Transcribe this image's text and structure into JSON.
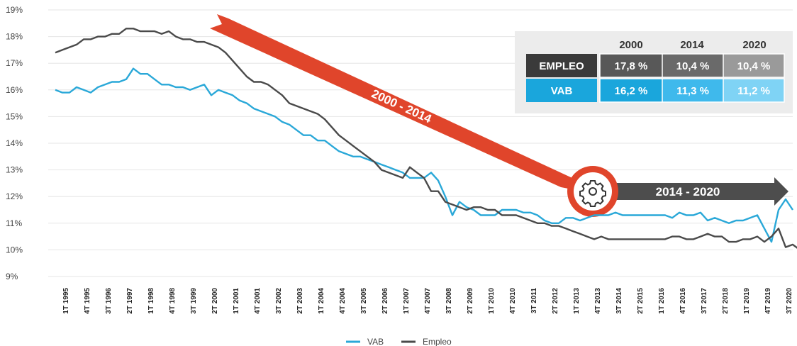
{
  "chart_data": {
    "type": "line",
    "ylim": [
      9,
      19
    ],
    "y_ticks": [
      "9%",
      "10%",
      "11%",
      "12%",
      "13%",
      "14%",
      "15%",
      "16%",
      "17%",
      "18%",
      "19%"
    ],
    "x_labels": [
      "1T 1995",
      "4T 1995",
      "3T 1996",
      "2T 1997",
      "1T 1998",
      "4T 1998",
      "3T 1999",
      "2T 2000",
      "1T 2001",
      "4T 2001",
      "3T 2002",
      "2T 2003",
      "1T 2004",
      "4T 2004",
      "3T 2005",
      "2T 2006",
      "1T 2007",
      "4T 2007",
      "3T 2008",
      "2T 2009",
      "1T 2010",
      "4T 2010",
      "3T 2011",
      "2T 2012",
      "1T 2013",
      "4T 2013",
      "3T 2014",
      "2T 2015",
      "1T 2016",
      "4T 2016",
      "3T 2017",
      "2T 2018",
      "1T 2019",
      "4T 2019",
      "3T 2020"
    ],
    "grid": true,
    "legend": "bottom-center",
    "series": [
      {
        "name": "VAB",
        "color": "#2aa8d8",
        "values": [
          16.0,
          15.9,
          15.9,
          16.1,
          16.0,
          15.9,
          16.1,
          16.2,
          16.3,
          16.3,
          16.4,
          16.8,
          16.6,
          16.6,
          16.4,
          16.2,
          16.2,
          16.1,
          16.1,
          16.0,
          16.1,
          16.2,
          15.8,
          16.0,
          15.9,
          15.8,
          15.6,
          15.5,
          15.3,
          15.2,
          15.1,
          15.0,
          14.8,
          14.7,
          14.5,
          14.3,
          14.3,
          14.1,
          14.1,
          13.9,
          13.7,
          13.6,
          13.5,
          13.5,
          13.4,
          13.3,
          13.2,
          13.1,
          13.0,
          12.9,
          12.7,
          12.7,
          12.7,
          12.9,
          12.6,
          12.0,
          11.3,
          11.8,
          11.6,
          11.5,
          11.3,
          11.3,
          11.3,
          11.5,
          11.5,
          11.5,
          11.4,
          11.4,
          11.3,
          11.1,
          11.0,
          11.0,
          11.2,
          11.2,
          11.1,
          11.2,
          11.3,
          11.3,
          11.3,
          11.4,
          11.3,
          11.3,
          11.3,
          11.3,
          11.3,
          11.3,
          11.3,
          11.2,
          11.4,
          11.3,
          11.3,
          11.4,
          11.1,
          11.2,
          11.1,
          11.0,
          11.1,
          11.1,
          11.2,
          11.3,
          10.8,
          10.3,
          11.5,
          11.9,
          11.5
        ]
      },
      {
        "name": "Empleo",
        "color": "#4a4a4a",
        "values": [
          17.4,
          17.5,
          17.6,
          17.7,
          17.9,
          17.9,
          18.0,
          18.0,
          18.1,
          18.1,
          18.3,
          18.3,
          18.2,
          18.2,
          18.2,
          18.1,
          18.2,
          18.0,
          17.9,
          17.9,
          17.8,
          17.8,
          17.7,
          17.6,
          17.4,
          17.1,
          16.8,
          16.5,
          16.3,
          16.3,
          16.2,
          16.0,
          15.8,
          15.5,
          15.4,
          15.3,
          15.2,
          15.1,
          14.9,
          14.6,
          14.3,
          14.1,
          13.9,
          13.7,
          13.5,
          13.3,
          13.0,
          12.9,
          12.8,
          12.7,
          13.1,
          12.9,
          12.7,
          12.2,
          12.2,
          11.8,
          11.7,
          11.6,
          11.5,
          11.6,
          11.6,
          11.5,
          11.5,
          11.3,
          11.3,
          11.3,
          11.2,
          11.1,
          11.0,
          11.0,
          10.9,
          10.9,
          10.8,
          10.7,
          10.6,
          10.5,
          10.4,
          10.5,
          10.4,
          10.4,
          10.4,
          10.4,
          10.4,
          10.4,
          10.4,
          10.4,
          10.4,
          10.5,
          10.5,
          10.4,
          10.4,
          10.5,
          10.6,
          10.5,
          10.5,
          10.3,
          10.3,
          10.4,
          10.4,
          10.5,
          10.3,
          10.5,
          10.8,
          10.1,
          10.2,
          10.0
        ]
      }
    ],
    "annotations": {
      "arrow_1_label": "2000 - 2014",
      "arrow_2_label": "2014 - 2020"
    },
    "table": {
      "headers": [
        "2000",
        "2014",
        "2020"
      ],
      "rows": [
        {
          "label": "EMPLEO",
          "values": [
            "17,8 %",
            "10,4 %",
            "10,4 %"
          ]
        },
        {
          "label": "VAB",
          "values": [
            "16,2 %",
            "11,3 %",
            "11,2 %"
          ]
        }
      ]
    }
  }
}
